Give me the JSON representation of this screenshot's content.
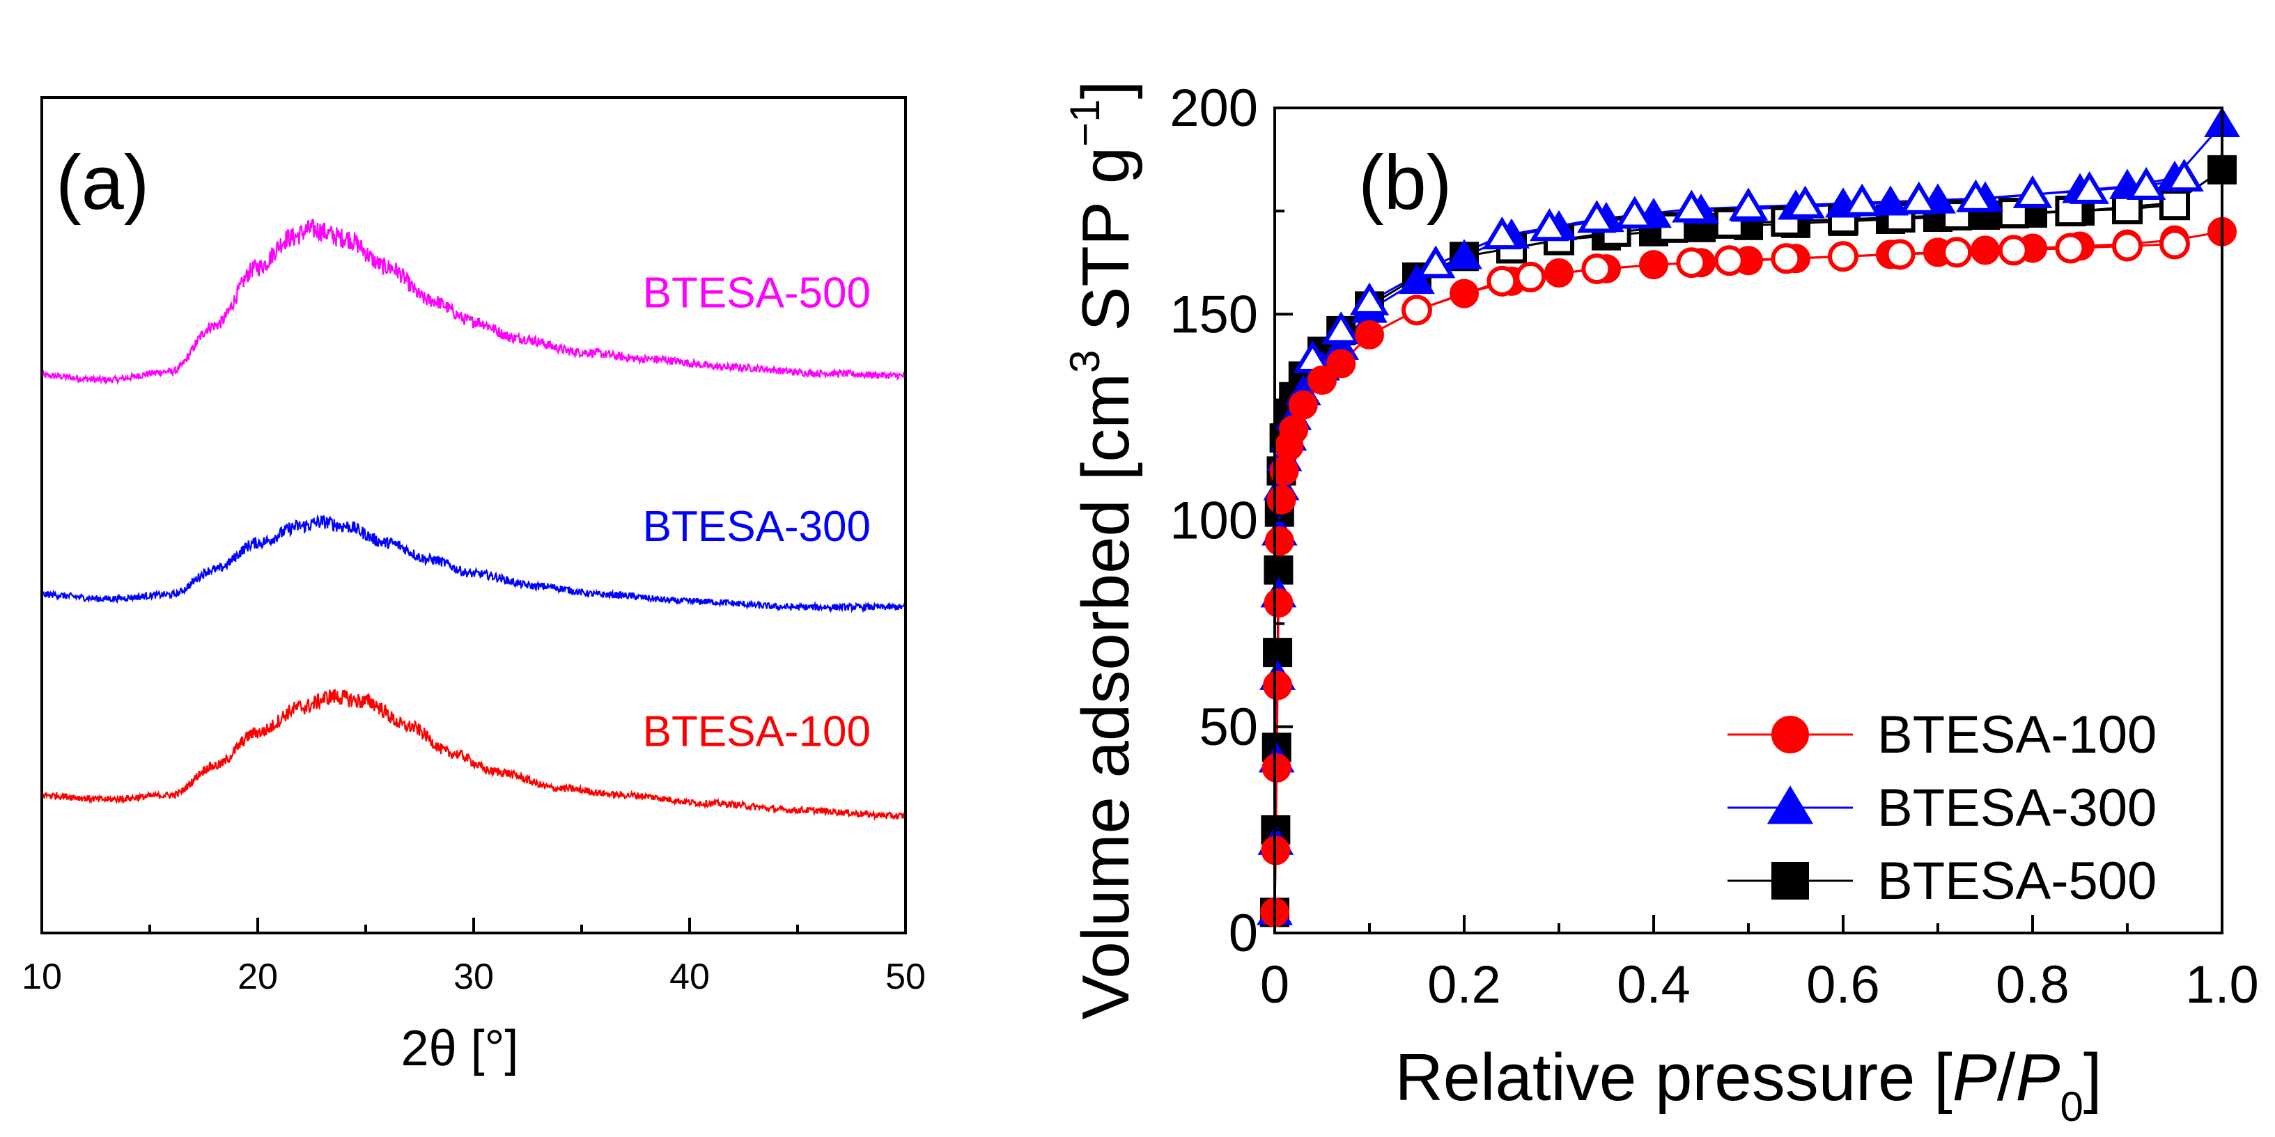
{
  "chart_data": [
    {
      "type": "line",
      "panel_label": "(a)",
      "xlabel": "2θ [°]",
      "ylabel": "",
      "xlim": [
        10,
        50
      ],
      "ylim": [
        0,
        1
      ],
      "x_ticks": [
        10,
        20,
        30,
        40,
        50
      ],
      "x_minor_ticks": [
        15,
        25,
        35,
        45
      ],
      "y_ticks": [],
      "series": [
        {
          "name": "BTESA-500",
          "color": "#ff00ff",
          "offset": 0.667,
          "points": [
            [
              10,
              0.0
            ],
            [
              13,
              -0.005
            ],
            [
              16,
              0.005
            ],
            [
              18,
              0.06
            ],
            [
              20,
              0.13
            ],
            [
              21.5,
              0.165
            ],
            [
              22.5,
              0.175
            ],
            [
              24,
              0.165
            ],
            [
              26,
              0.13
            ],
            [
              28,
              0.09
            ],
            [
              30,
              0.065
            ],
            [
              32,
              0.045
            ],
            [
              35,
              0.028
            ],
            [
              38,
              0.02
            ],
            [
              42,
              0.01
            ],
            [
              46,
              0.003
            ],
            [
              50,
              0.0
            ]
          ]
        },
        {
          "name": "BTESA-300",
          "color": "#0000ff",
          "offset": 0.405,
          "points": [
            [
              10,
              0.0
            ],
            [
              13,
              -0.005
            ],
            [
              16,
              0.0
            ],
            [
              18,
              0.03
            ],
            [
              20,
              0.062
            ],
            [
              22,
              0.082
            ],
            [
              23,
              0.087
            ],
            [
              24,
              0.082
            ],
            [
              26,
              0.062
            ],
            [
              28,
              0.042
            ],
            [
              30,
              0.025
            ],
            [
              33,
              0.01
            ],
            [
              36,
              0.0
            ],
            [
              40,
              -0.008
            ],
            [
              45,
              -0.015
            ],
            [
              50,
              -0.015
            ]
          ]
        },
        {
          "name": "BTESA-100",
          "color": "#ff0000",
          "offset": 0.165,
          "points": [
            [
              10,
              0.0
            ],
            [
              13,
              -0.005
            ],
            [
              16,
              0.0
            ],
            [
              18,
              0.035
            ],
            [
              20,
              0.075
            ],
            [
              22,
              0.105
            ],
            [
              23.5,
              0.118
            ],
            [
              25,
              0.112
            ],
            [
              27,
              0.082
            ],
            [
              29,
              0.05
            ],
            [
              31,
              0.028
            ],
            [
              34,
              0.008
            ],
            [
              37,
              0.0
            ],
            [
              41,
              -0.01
            ],
            [
              45,
              -0.018
            ],
            [
              50,
              -0.025
            ]
          ]
        }
      ]
    },
    {
      "type": "scatter",
      "panel_label": "(b)",
      "xlabel_main": "Relative pressure [",
      "xlabel_italic_p": "P",
      "xlabel_slash": "/",
      "xlabel_italic_p0": "P",
      "xlabel_sub": "0",
      "xlabel_close": "]",
      "ylabel_main": "Volume adsorbed [cm",
      "ylabel_sup": "3",
      "ylabel_mid": " STP g",
      "ylabel_sup2": "−1",
      "ylabel_close": "]",
      "xlim": [
        0,
        1.0
      ],
      "ylim": [
        0,
        200
      ],
      "x_ticks": [
        0,
        0.2,
        0.4,
        0.6,
        0.8,
        1.0
      ],
      "x_tick_labels": [
        "0",
        "0.2",
        "0.4",
        "0.6",
        "0.8",
        "1.0"
      ],
      "x_minor_ticks": [
        0.1,
        0.3,
        0.5,
        0.7,
        0.9
      ],
      "y_ticks": [
        0,
        50,
        100,
        150,
        200
      ],
      "y_tick_labels": [
        "0",
        "50",
        "100",
        "150",
        "200"
      ],
      "y_minor_ticks": [
        25,
        75,
        125,
        175
      ],
      "legend_position": "bottom-right",
      "series": [
        {
          "name": "BTESA-100",
          "marker": "circle",
          "color": "#ff0000",
          "adsorption": [
            [
              0.0,
              5
            ],
            [
              0.001,
              20
            ],
            [
              0.002,
              40
            ],
            [
              0.003,
              60
            ],
            [
              0.004,
              80
            ],
            [
              0.005,
              95
            ],
            [
              0.007,
              105
            ],
            [
              0.01,
              112
            ],
            [
              0.015,
              118
            ],
            [
              0.02,
              122
            ],
            [
              0.03,
              128
            ],
            [
              0.05,
              134
            ],
            [
              0.07,
              138
            ],
            [
              0.1,
              145
            ],
            [
              0.15,
              151
            ],
            [
              0.2,
              155
            ],
            [
              0.25,
              158
            ],
            [
              0.3,
              160
            ],
            [
              0.35,
              161
            ],
            [
              0.4,
              162
            ],
            [
              0.45,
              162.5
            ],
            [
              0.5,
              163
            ],
            [
              0.55,
              163.5
            ],
            [
              0.6,
              164
            ],
            [
              0.65,
              164.5
            ],
            [
              0.7,
              165
            ],
            [
              0.75,
              165.5
            ],
            [
              0.8,
              166
            ],
            [
              0.85,
              166.5
            ],
            [
              0.9,
              167
            ],
            [
              0.95,
              168
            ],
            [
              1.0,
              170
            ]
          ],
          "desorption": [
            [
              0.95,
              167
            ],
            [
              0.9,
              166.5
            ],
            [
              0.84,
              166
            ],
            [
              0.78,
              165.5
            ],
            [
              0.72,
              165
            ],
            [
              0.66,
              164.5
            ],
            [
              0.6,
              164
            ],
            [
              0.54,
              163.5
            ],
            [
              0.48,
              163
            ],
            [
              0.44,
              162.5
            ],
            [
              0.34,
              161
            ],
            [
              0.27,
              159
            ],
            [
              0.24,
              158
            ],
            [
              0.15,
              151
            ]
          ]
        },
        {
          "name": "BTESA-300",
          "marker": "triangle",
          "color": "#0000ff",
          "adsorption": [
            [
              0.0,
              5
            ],
            [
              0.001,
              22
            ],
            [
              0.002,
              42
            ],
            [
              0.003,
              62
            ],
            [
              0.004,
              82
            ],
            [
              0.005,
              97
            ],
            [
              0.007,
              108
            ],
            [
              0.01,
              115
            ],
            [
              0.015,
              120
            ],
            [
              0.02,
              125
            ],
            [
              0.03,
              131
            ],
            [
              0.05,
              137
            ],
            [
              0.07,
              142
            ],
            [
              0.1,
              151
            ],
            [
              0.15,
              158
            ],
            [
              0.2,
              164
            ],
            [
              0.25,
              169
            ],
            [
              0.3,
              171
            ],
            [
              0.35,
              173
            ],
            [
              0.4,
              174
            ],
            [
              0.45,
              175
            ],
            [
              0.5,
              175.5
            ],
            [
              0.55,
              176
            ],
            [
              0.6,
              176.5
            ],
            [
              0.65,
              177
            ],
            [
              0.7,
              177.5
            ],
            [
              0.75,
              178
            ],
            [
              0.8,
              179
            ],
            [
              0.85,
              180
            ],
            [
              0.9,
              181
            ],
            [
              0.95,
              183
            ],
            [
              1.0,
              196
            ]
          ],
          "desorption": [
            [
              0.96,
              183
            ],
            [
              0.92,
              181
            ],
            [
              0.86,
              180
            ],
            [
              0.8,
              179
            ],
            [
              0.74,
              178
            ],
            [
              0.68,
              177.5
            ],
            [
              0.62,
              177
            ],
            [
              0.56,
              176.5
            ],
            [
              0.5,
              176
            ],
            [
              0.44,
              175.5
            ],
            [
              0.38,
              174
            ],
            [
              0.34,
              173
            ],
            [
              0.29,
              171
            ],
            [
              0.24,
              169
            ],
            [
              0.17,
              162
            ],
            [
              0.1,
              153
            ],
            [
              0.07,
              146
            ],
            [
              0.04,
              139
            ]
          ]
        },
        {
          "name": "BTESA-500",
          "marker": "square",
          "color": "#000000",
          "adsorption": [
            [
              0.0,
              5
            ],
            [
              0.001,
              25
            ],
            [
              0.002,
              45
            ],
            [
              0.003,
              68
            ],
            [
              0.004,
              88
            ],
            [
              0.005,
              102
            ],
            [
              0.007,
              112
            ],
            [
              0.01,
              120
            ],
            [
              0.015,
              126
            ],
            [
              0.02,
              130
            ],
            [
              0.03,
              135
            ],
            [
              0.05,
              141
            ],
            [
              0.07,
              146
            ],
            [
              0.1,
              152
            ],
            [
              0.15,
              159
            ],
            [
              0.2,
              164
            ],
            [
              0.25,
              166
            ],
            [
              0.3,
              168
            ],
            [
              0.35,
              169
            ],
            [
              0.4,
              170
            ],
            [
              0.45,
              171
            ],
            [
              0.5,
              171.5
            ],
            [
              0.55,
              172
            ],
            [
              0.6,
              172.5
            ],
            [
              0.65,
              173
            ],
            [
              0.7,
              173.5
            ],
            [
              0.75,
              174
            ],
            [
              0.8,
              174.5
            ],
            [
              0.85,
              175
            ],
            [
              0.9,
              176
            ],
            [
              0.95,
              177
            ],
            [
              1.0,
              185
            ]
          ],
          "desorption": [
            [
              0.95,
              176.5
            ],
            [
              0.9,
              175.5
            ],
            [
              0.84,
              175
            ],
            [
              0.78,
              174.5
            ],
            [
              0.72,
              174
            ],
            [
              0.66,
              173.5
            ],
            [
              0.6,
              173
            ],
            [
              0.54,
              172.5
            ],
            [
              0.48,
              172
            ],
            [
              0.42,
              171
            ],
            [
              0.36,
              170
            ],
            [
              0.3,
              168
            ],
            [
              0.25,
              166
            ]
          ]
        }
      ]
    }
  ]
}
